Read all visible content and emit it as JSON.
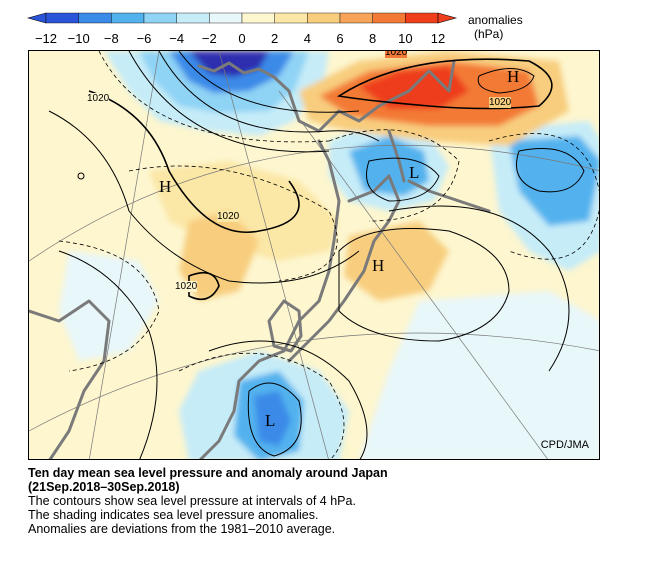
{
  "colorbar": {
    "ticks": [
      "−12",
      "−10",
      "−8",
      "−6",
      "−4",
      "−2",
      "0",
      "2",
      "4",
      "6",
      "8",
      "10",
      "12"
    ],
    "title": "anomalies",
    "unit": "(hPa)",
    "colors": [
      "#2a55d8",
      "#3a8ae8",
      "#52b2ee",
      "#8fd3f5",
      "#c6ecf8",
      "#e8f7fa",
      "#fdf6cf",
      "#fbe7a6",
      "#f8cd7e",
      "#f7a358",
      "#f37a36",
      "#ee3e1c"
    ]
  },
  "map": {
    "labels_1020": [
      "1020",
      "1020",
      "1020",
      "1020",
      "1020"
    ],
    "H": "H",
    "L": "L",
    "credit": "CPD/JMA"
  },
  "caption": {
    "title_line1": "Ten day mean sea level pressure and anomaly around Japan",
    "title_line2": "(21Sep.2018–30Sep.2018)",
    "line1": "The contours show sea level pressure at intervals of 4 hPa.",
    "line2": "The shading indicates sea level pressure anomalies.",
    "line3": "Anomalies are deviations from the 1981–2010 average."
  }
}
